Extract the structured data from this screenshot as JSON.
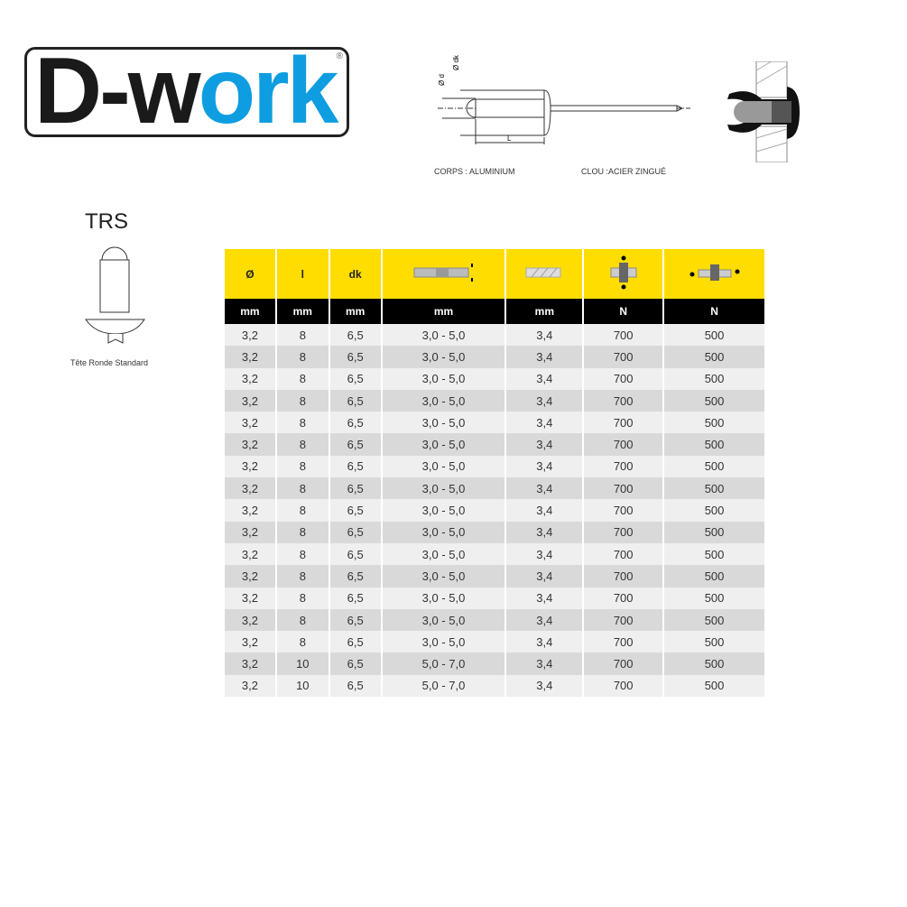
{
  "logo": {
    "text_dark": "D-w",
    "text_blue": "ork",
    "registered": "®",
    "brand_colors": {
      "dark": "#1a1a1a",
      "blue": "#0e9de0"
    }
  },
  "diagram": {
    "label_d": "Ø d",
    "label_dk": "Ø dk",
    "label_L": "L",
    "body_material": "CORPS : ALUMINIUM",
    "mandrel_material": "CLOU :ACIER ZINGUÉ"
  },
  "head_type": {
    "code": "TRS",
    "caption": "Tête Ronde Standard"
  },
  "table": {
    "headers": [
      "Ø",
      "l",
      "dk",
      "grip-range-icon",
      "drill-hole-icon",
      "shear-force-icon",
      "tensile-force-icon"
    ],
    "units": [
      "mm",
      "mm",
      "mm",
      "mm",
      "mm",
      "N",
      "N"
    ],
    "rows": [
      [
        "3,2",
        "8",
        "6,5",
        "3,0 - 5,0",
        "3,4",
        "700",
        "500"
      ],
      [
        "3,2",
        "8",
        "6,5",
        "3,0 - 5,0",
        "3,4",
        "700",
        "500"
      ],
      [
        "3,2",
        "8",
        "6,5",
        "3,0 - 5,0",
        "3,4",
        "700",
        "500"
      ],
      [
        "3,2",
        "8",
        "6,5",
        "3,0 - 5,0",
        "3,4",
        "700",
        "500"
      ],
      [
        "3,2",
        "8",
        "6,5",
        "3,0 - 5,0",
        "3,4",
        "700",
        "500"
      ],
      [
        "3,2",
        "8",
        "6,5",
        "3,0 - 5,0",
        "3,4",
        "700",
        "500"
      ],
      [
        "3,2",
        "8",
        "6,5",
        "3,0 - 5,0",
        "3,4",
        "700",
        "500"
      ],
      [
        "3,2",
        "8",
        "6,5",
        "3,0 - 5,0",
        "3,4",
        "700",
        "500"
      ],
      [
        "3,2",
        "8",
        "6,5",
        "3,0 - 5,0",
        "3,4",
        "700",
        "500"
      ],
      [
        "3,2",
        "8",
        "6,5",
        "3,0 - 5,0",
        "3,4",
        "700",
        "500"
      ],
      [
        "3,2",
        "8",
        "6,5",
        "3,0 - 5,0",
        "3,4",
        "700",
        "500"
      ],
      [
        "3,2",
        "8",
        "6,5",
        "3,0 - 5,0",
        "3,4",
        "700",
        "500"
      ],
      [
        "3,2",
        "8",
        "6,5",
        "3,0 - 5,0",
        "3,4",
        "700",
        "500"
      ],
      [
        "3,2",
        "8",
        "6,5",
        "3,0 - 5,0",
        "3,4",
        "700",
        "500"
      ],
      [
        "3,2",
        "8",
        "6,5",
        "3,0 - 5,0",
        "3,4",
        "700",
        "500"
      ],
      [
        "3,2",
        "10",
        "6,5",
        "5,0 - 7,0",
        "3,4",
        "700",
        "500"
      ],
      [
        "3,2",
        "10",
        "6,5",
        "5,0 - 7,0",
        "3,4",
        "700",
        "500"
      ]
    ],
    "header_color": "#ffdd00"
  }
}
